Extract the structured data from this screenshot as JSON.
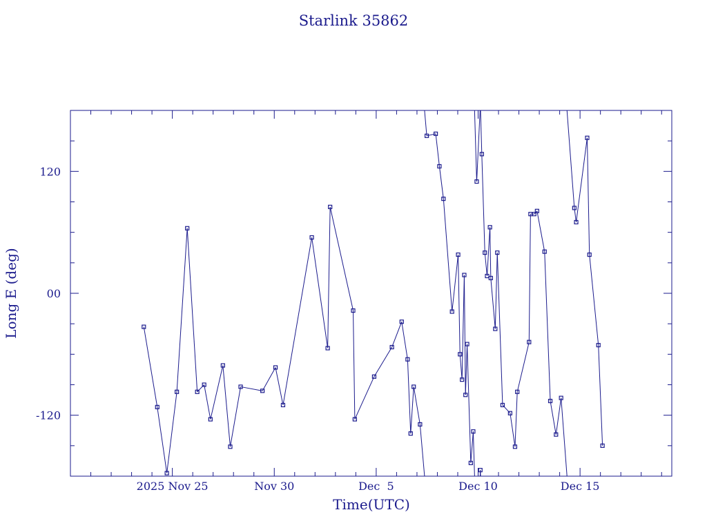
{
  "chart_data": {
    "type": "line",
    "title": "Starlink 35862",
    "xlabel": "Time(UTC)",
    "ylabel": "Long E (deg)",
    "x_unit": "day",
    "x_tick_labels": [
      "2025 Nov 25",
      "Nov 30",
      "Dec  5",
      "Dec 10",
      "Dec 15"
    ],
    "x_tick_values": [
      "2025-11-25",
      "2025-11-30",
      "2025-12-05",
      "2025-12-10",
      "2025-12-15"
    ],
    "xlim": [
      "2025-11-20",
      "2025-12-19.5"
    ],
    "ylim": [
      -180,
      180
    ],
    "y_tick_labels": [
      "-120",
      "00",
      "120"
    ],
    "y_tick_values": [
      -120,
      0,
      120
    ],
    "grid": false,
    "line_color": "#1a1a8c",
    "series": [
      {
        "x": [
          "2025-11-23.6",
          "2025-11-24.26",
          "2025-11-24.73",
          "2025-11-25.22",
          "2025-11-25.73",
          "2025-11-26.22",
          "2025-11-26.56",
          "2025-11-26.87",
          "2025-11-27.48",
          "2025-11-27.84",
          "2025-11-28.35",
          "2025-11-29.42",
          "2025-11-30.06",
          "2025-11-30.43",
          "2025-12-01.84",
          "2025-12-02.62",
          "2025-12-02.74",
          "2025-12-03.87",
          "2025-12-03.95",
          "2025-12-04.9",
          "2025-12-05.77",
          "2025-12-06.25",
          "2025-12-06.54",
          "2025-12-06.69",
          "2025-12-06.84",
          "2025-12-07.15",
          "2025-12-07.48",
          "2025-12-07.92",
          "2025-12-08.1",
          "2025-12-08.3",
          "2025-12-08.72",
          "2025-12-09.02",
          "2025-12-09.11",
          "2025-12-09.21",
          "2025-12-09.32",
          "2025-12-09.38",
          "2025-12-09.46",
          "2025-12-09.64",
          "2025-12-09.76",
          "2025-12-09.93",
          "2025-12-10.11",
          "2025-12-10.18",
          "2025-12-10.33",
          "2025-12-10.44",
          "2025-12-10.58",
          "2025-12-10.62",
          "2025-12-10.84",
          "2025-12-10.94",
          "2025-12-11.2",
          "2025-12-11.57",
          "2025-12-11.81",
          "2025-12-11.92",
          "2025-12-12.5",
          "2025-12-12.57",
          "2025-12-12.75",
          "2025-12-12.89",
          "2025-12-13.26",
          "2025-12-13.54",
          "2025-12-13.82",
          "2025-12-14.07",
          "2025-12-14.72",
          "2025-12-14.81",
          "2025-12-15.35",
          "2025-12-15.46",
          "2025-12-15.9",
          "2025-12-16.1"
        ],
        "y": [
          -33,
          -112,
          -177,
          -97,
          64,
          -97,
          -90,
          -124,
          -71,
          -151,
          -92,
          -96,
          -73,
          -110,
          55,
          -54,
          85,
          -17,
          -124,
          -82,
          -53,
          -28,
          -65,
          -138,
          -92,
          -129,
          155,
          157,
          125,
          93,
          -18,
          38,
          -60,
          -85,
          18,
          -100,
          -50,
          -167,
          -136,
          110,
          -174,
          137,
          40,
          17,
          65,
          15,
          -35,
          40,
          -110,
          -118,
          -151,
          -97,
          -48,
          78,
          78,
          81,
          41,
          -106,
          -139,
          -103,
          84,
          70,
          153,
          38,
          -51,
          -150
        ]
      }
    ]
  }
}
